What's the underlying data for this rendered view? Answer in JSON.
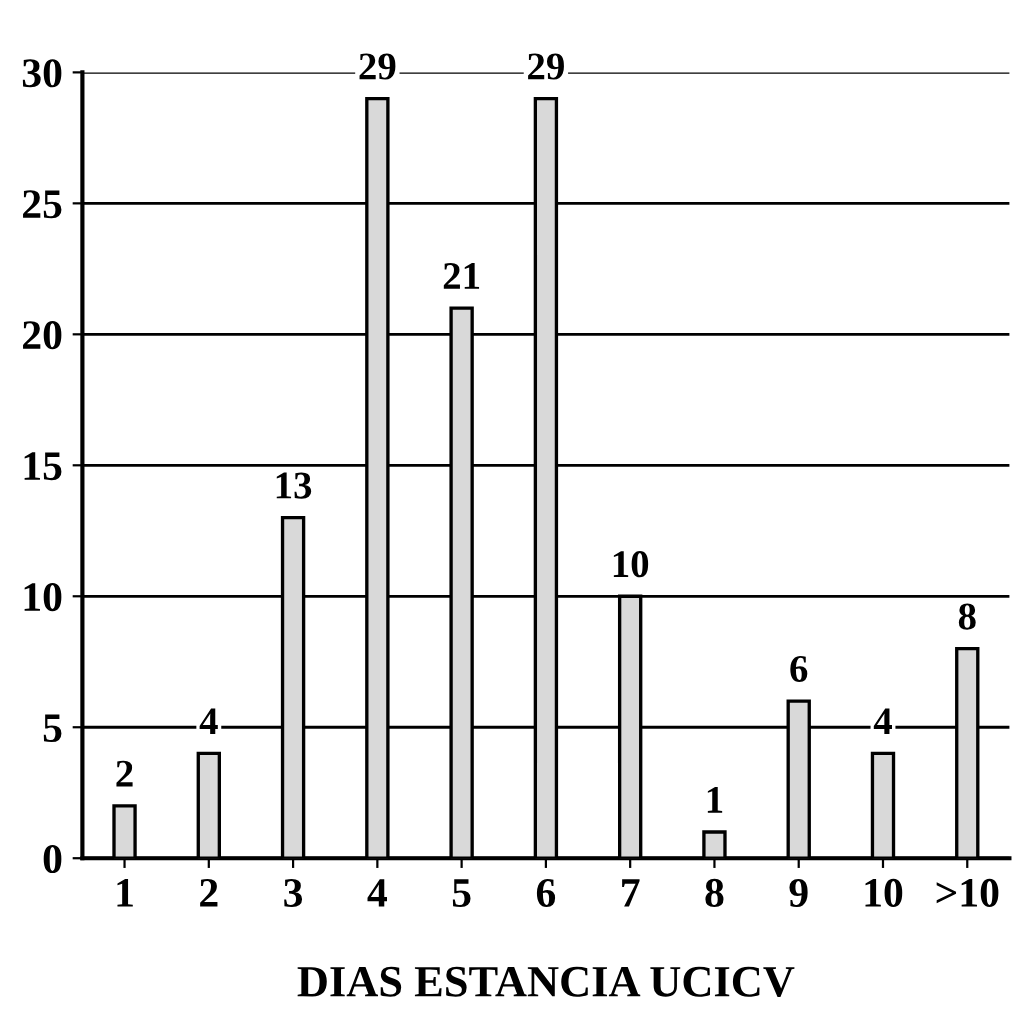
{
  "chart_data": {
    "type": "bar",
    "xlabel": "DIAS ESTANCIA UCICV",
    "categories": [
      "1",
      "2",
      "3",
      "4",
      "5",
      "6",
      "7",
      "8",
      "9",
      "10",
      ">10"
    ],
    "values": [
      2,
      4,
      13,
      29,
      21,
      29,
      10,
      1,
      6,
      4,
      8
    ],
    "color": "#d9d9d9",
    "ylim": [
      0,
      30
    ],
    "yticks": [
      0,
      5,
      10,
      15,
      20,
      25,
      30
    ],
    "grid": "y",
    "data_labels": true
  }
}
